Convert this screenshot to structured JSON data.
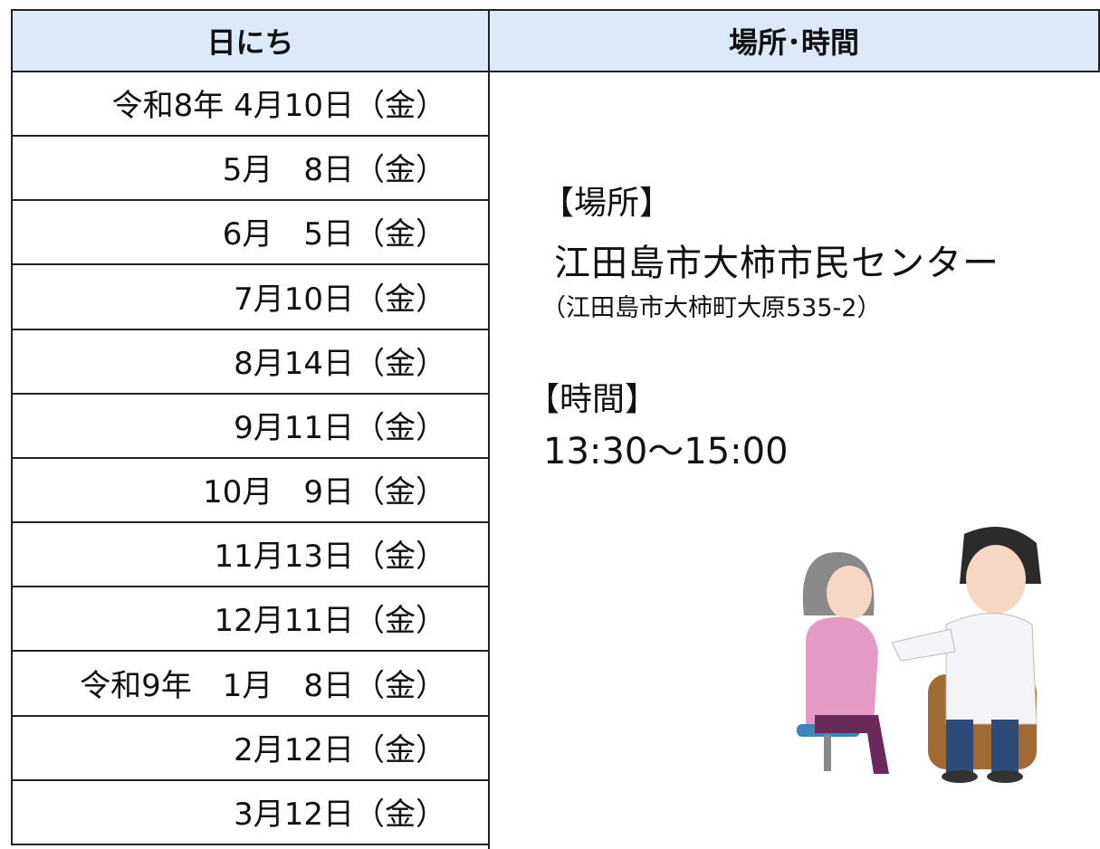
{
  "header": {
    "date_column": "日にち",
    "place_column": "場所･時間"
  },
  "table": {
    "rows": [
      "令和8年 4月10日（金）",
      "5月　8日（金）",
      "6月　5日（金）",
      "7月10日（金）",
      "8月14日（金）",
      "9月11日（金）",
      "10月　9日（金）",
      "11月13日（金）",
      "12月11日（金）",
      "令和9年　1月　8日（金）",
      "2月12日（金）",
      "3月12日（金）"
    ]
  },
  "location": {
    "heading": "【場所】",
    "name": "江田島市大柿市民センター",
    "address": "（江田島市大柿町大原535-2）"
  },
  "time": {
    "heading": "【時間】",
    "hours": "13:30～15:00"
  }
}
